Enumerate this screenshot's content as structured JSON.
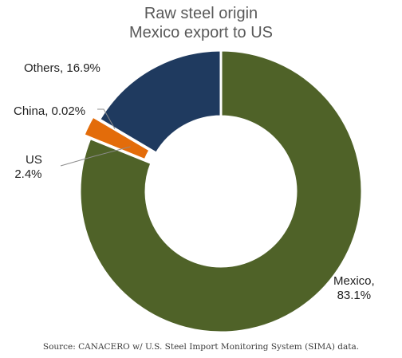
{
  "chart_data": {
    "type": "donut",
    "title": [
      "Raw steel origin",
      "Mexico export  to US"
    ],
    "slices": [
      {
        "name": "Mexico",
        "value": 83.1,
        "label": [
          "Mexico,",
          "83.1%"
        ],
        "color": "#4f6228",
        "exploded": false
      },
      {
        "name": "US",
        "value": 2.4,
        "label": [
          "US",
          "2.4%"
        ],
        "color": "#e36c0a",
        "exploded": true
      },
      {
        "name": "China",
        "value": 0.02,
        "label": [
          "China, 0.02%"
        ],
        "color": "#e36c0a",
        "exploded": true
      },
      {
        "name": "Others",
        "value": 16.9,
        "label": [
          "Others, 16.9%"
        ],
        "color": "#1f3a5f",
        "exploded": false
      }
    ],
    "legend": "none"
  },
  "source": "Source: CANACERO w/ U.S. Steel Import Monitoring System (SIMA) data."
}
